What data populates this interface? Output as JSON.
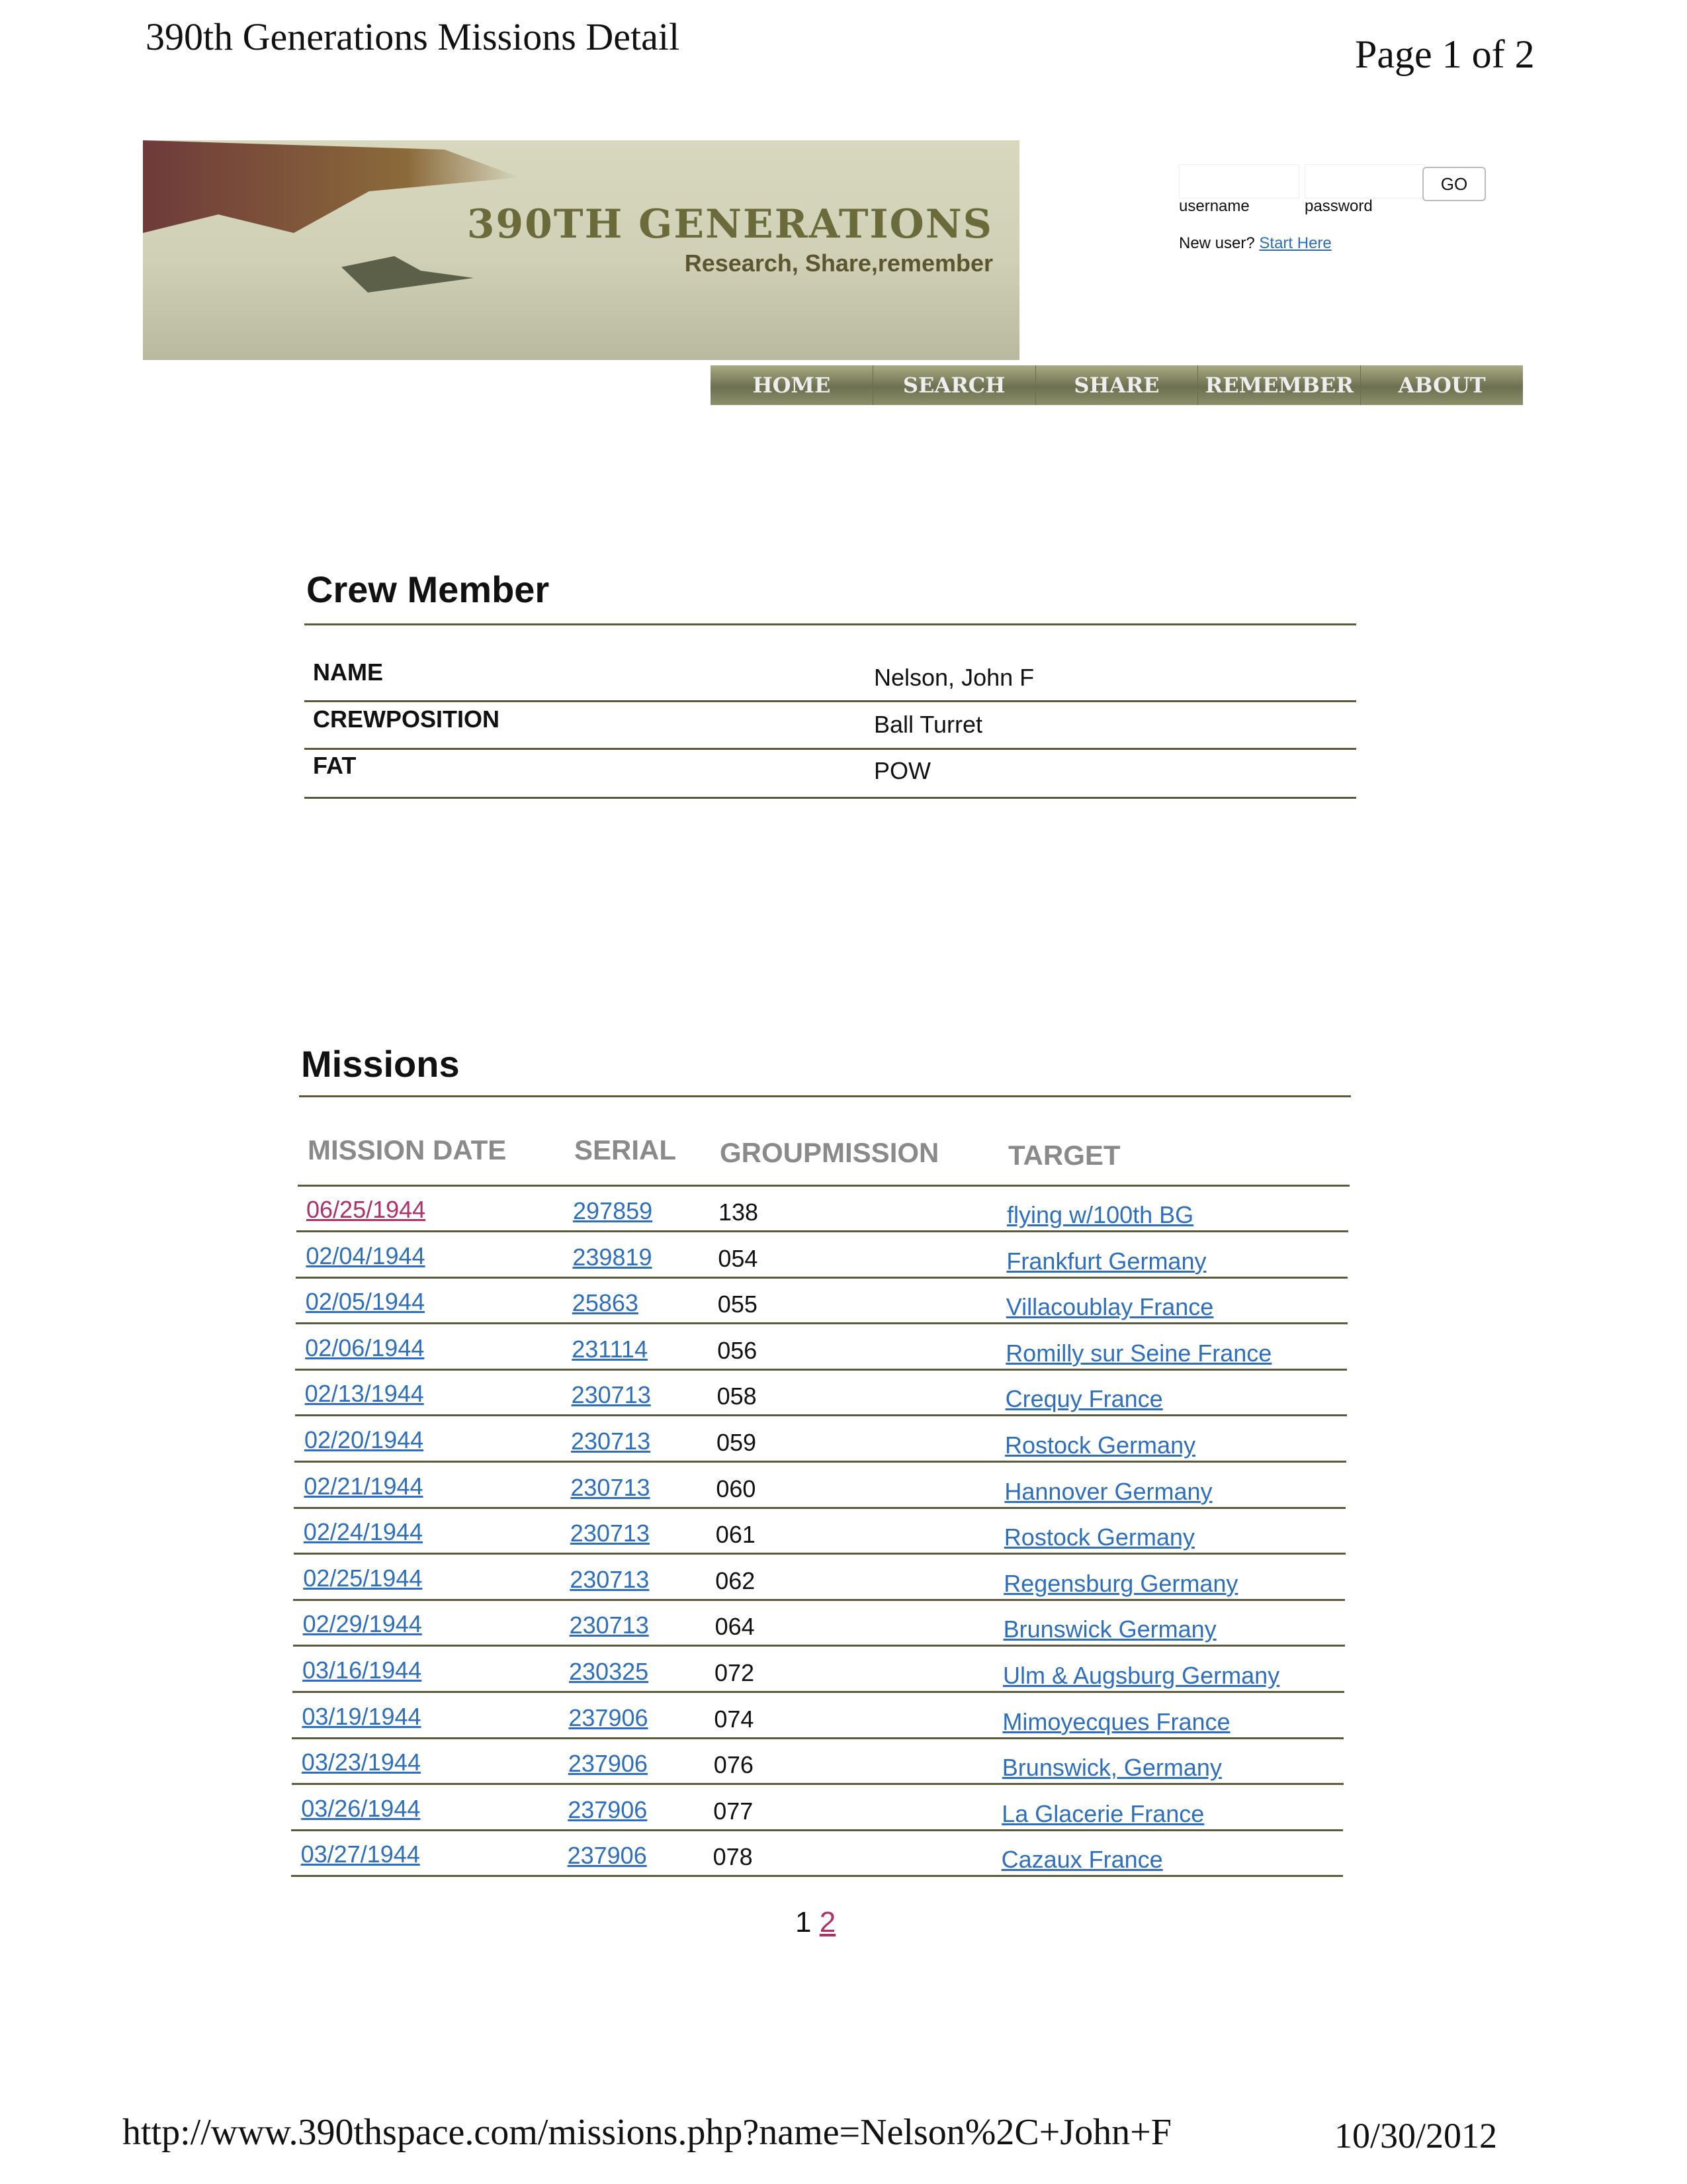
{
  "print_header": {
    "title": "390th Generations Missions Detail",
    "page": "Page 1 of 2"
  },
  "banner": {
    "title": "390TH GENERATIONS",
    "subtitle": "Research, Share,remember"
  },
  "login": {
    "username_label": "username",
    "password_label": "password",
    "go_label": "GO",
    "new_user_text": "New user?",
    "start_here_link": "Start Here"
  },
  "nav": [
    "HOME",
    "SEARCH",
    "SHARE",
    "REMEMBER",
    "ABOUT"
  ],
  "crew": {
    "heading": "Crew Member",
    "rows": [
      {
        "label": "NAME",
        "value": "Nelson, John F"
      },
      {
        "label": "CREWPOSITION",
        "value": "Ball Turret"
      },
      {
        "label": "FAT",
        "value": "POW"
      }
    ]
  },
  "missions": {
    "heading": "Missions",
    "columns": [
      "MISSION DATE",
      "SERIAL",
      "GROUPMISSION",
      "TARGET"
    ],
    "rows": [
      {
        "date": "06/25/1944",
        "serial": "297859",
        "group": "138",
        "target": "flying w/100th BG"
      },
      {
        "date": "02/04/1944",
        "serial": "239819",
        "group": "054",
        "target": "Frankfurt Germany"
      },
      {
        "date": "02/05/1944",
        "serial": "25863",
        "group": "055",
        "target": "Villacoublay France"
      },
      {
        "date": "02/06/1944",
        "serial": "231114",
        "group": "056",
        "target": "Romilly sur Seine France"
      },
      {
        "date": "02/13/1944",
        "serial": "230713",
        "group": "058",
        "target": "Crequy France"
      },
      {
        "date": "02/20/1944",
        "serial": "230713",
        "group": "059",
        "target": "Rostock Germany"
      },
      {
        "date": "02/21/1944",
        "serial": "230713",
        "group": "060",
        "target": "Hannover Germany"
      },
      {
        "date": "02/24/1944",
        "serial": "230713",
        "group": "061",
        "target": "Rostock Germany"
      },
      {
        "date": "02/25/1944",
        "serial": "230713",
        "group": "062",
        "target": "Regensburg Germany"
      },
      {
        "date": "02/29/1944",
        "serial": "230713",
        "group": "064",
        "target": "Brunswick Germany"
      },
      {
        "date": "03/16/1944",
        "serial": "230325",
        "group": "072",
        "target": "Ulm & Augsburg Germany"
      },
      {
        "date": "03/19/1944",
        "serial": "237906",
        "group": "074",
        "target": "Mimoyecques France"
      },
      {
        "date": "03/23/1944",
        "serial": "237906",
        "group": "076",
        "target": "Brunswick, Germany"
      },
      {
        "date": "03/26/1944",
        "serial": "237906",
        "group": "077",
        "target": "La Glacerie France"
      },
      {
        "date": "03/27/1944",
        "serial": "237906",
        "group": "078",
        "target": "Cazaux France"
      }
    ]
  },
  "pagination": {
    "current": "1",
    "next": "2"
  },
  "print_footer": {
    "url": "http://www.390thspace.com/missions.php?name=Nelson%2C+John+F",
    "date": "10/30/2012"
  },
  "colors": {
    "link": "#2d6fbe",
    "visited_link": "#b0306a",
    "rule": "#5c5a3a",
    "nav_bg": "#6d7050"
  }
}
